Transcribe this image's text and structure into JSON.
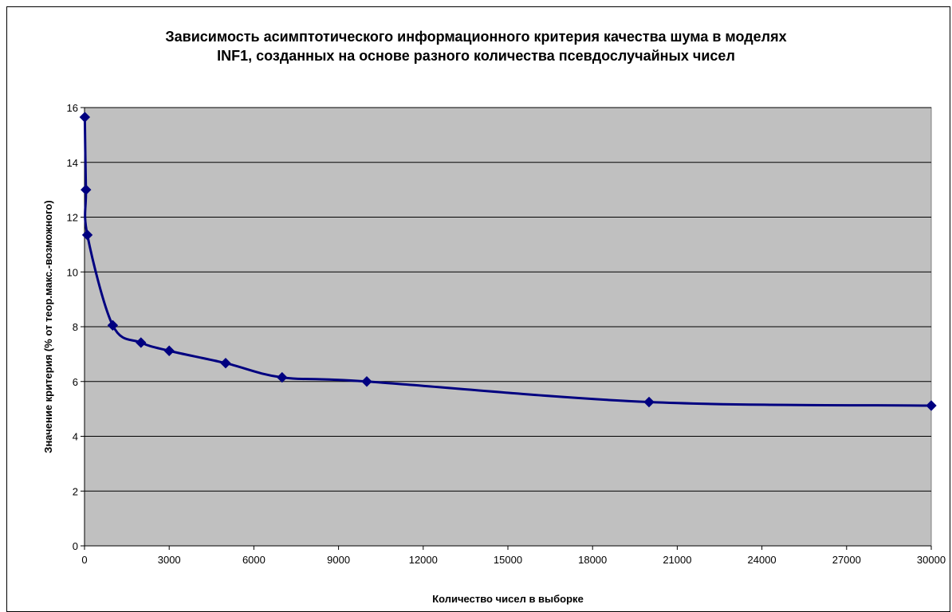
{
  "chart_data": {
    "type": "line",
    "title_line1": "Зависимость асимптотического информационного критерия качества шума в моделях",
    "title_line2": "INF1, созданных на основе разного количества псевдослучайных чисел",
    "xlabel": "Количество чисел в выборке",
    "ylabel": "Значение критерия (% от теор.макс.-возможного)",
    "xlim": [
      0,
      30000
    ],
    "ylim": [
      0,
      16
    ],
    "xticks": [
      0,
      3000,
      6000,
      9000,
      12000,
      15000,
      18000,
      21000,
      24000,
      27000,
      30000
    ],
    "yticks": [
      0,
      2,
      4,
      6,
      8,
      10,
      12,
      14,
      16
    ],
    "grid": "horizontal",
    "plot_background": "#c0c0c0",
    "series": [
      {
        "color": "#000080",
        "marker": "diamond",
        "x": [
          10,
          50,
          100,
          1000,
          2000,
          3000,
          5000,
          7000,
          10000,
          20000,
          30000
        ],
        "y": [
          15.65,
          13.0,
          11.35,
          8.05,
          7.42,
          7.12,
          6.67,
          6.15,
          6.0,
          5.25,
          5.12
        ]
      }
    ]
  }
}
